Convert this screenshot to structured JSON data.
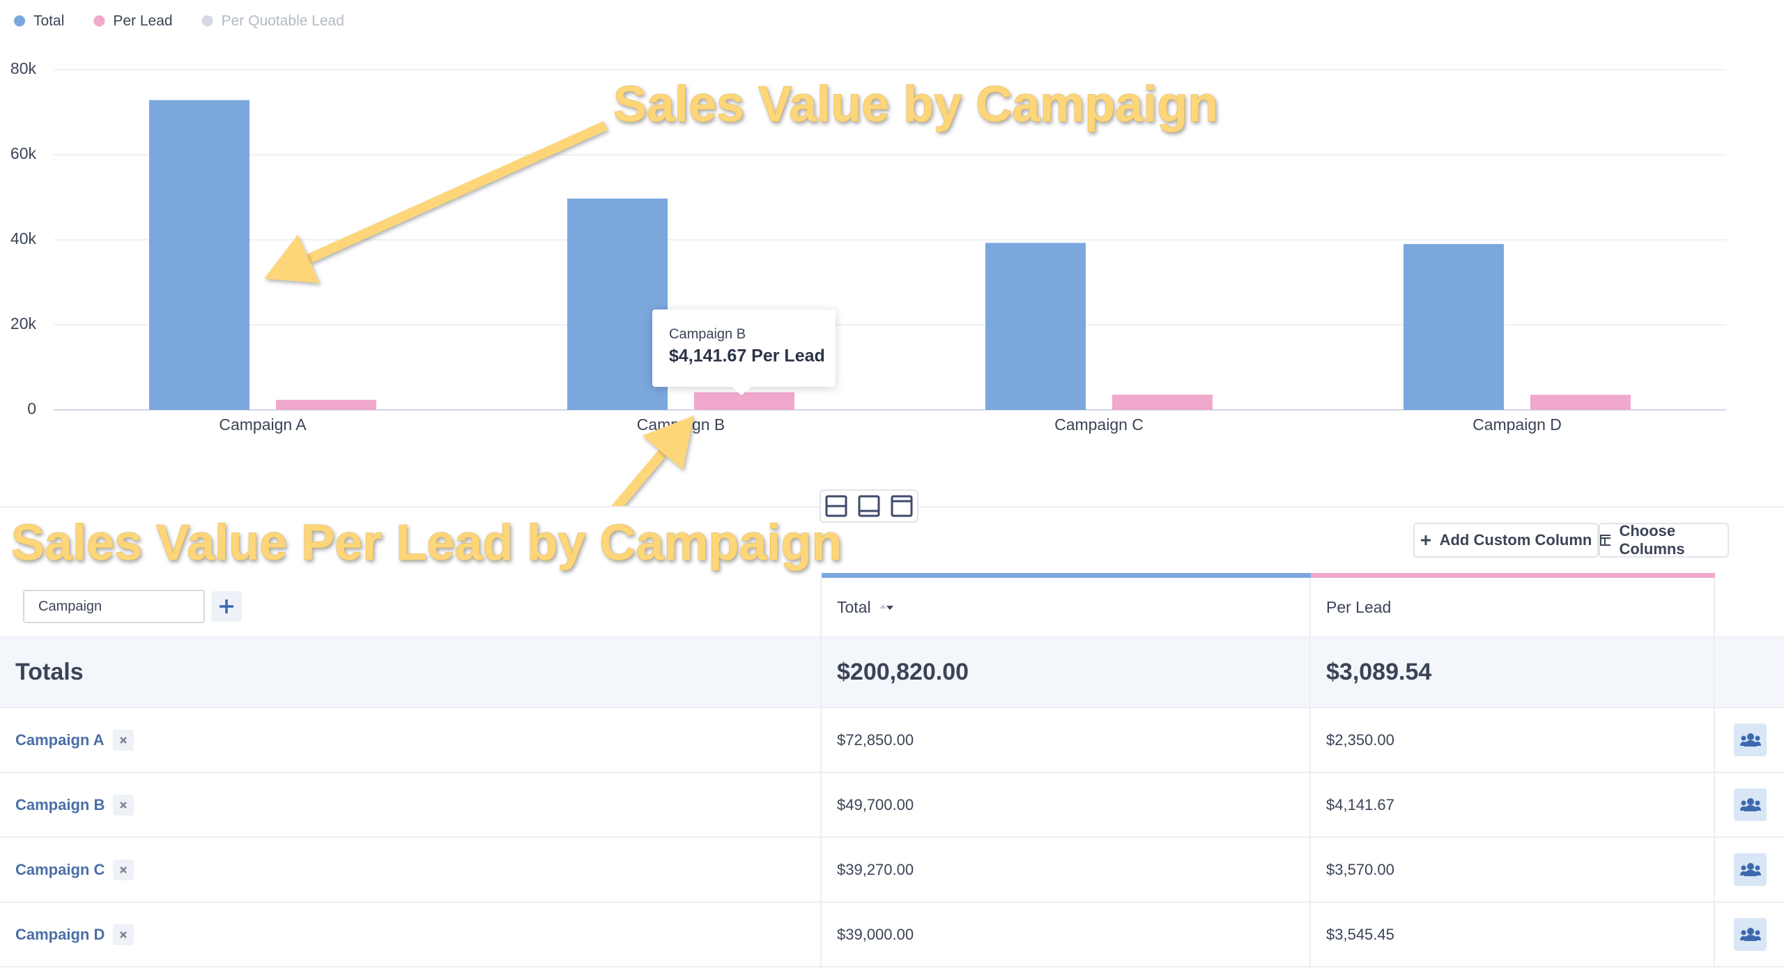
{
  "chart_data": {
    "type": "bar",
    "categories": [
      "Campaign A",
      "Campaign B",
      "Campaign C",
      "Campaign D"
    ],
    "series": [
      {
        "name": "Total",
        "color": "#7ba7dd",
        "values": [
          72850,
          49700,
          39270,
          39000
        ]
      },
      {
        "name": "Per Lead",
        "color": "#f0a8cc",
        "values": [
          2350,
          4141.67,
          3570,
          3545.45
        ]
      },
      {
        "name": "Per Quotable Lead",
        "color": "#d5d9e6",
        "values": [
          null,
          null,
          null,
          null
        ]
      }
    ],
    "ylim": [
      0,
      80000
    ],
    "yticks": [
      0,
      {
        "value": 20000,
        "label": "20k"
      },
      {
        "value": 40000,
        "label": "40k"
      },
      {
        "value": 60000,
        "label": "60k"
      },
      {
        "value": 80000,
        "label": "80k"
      }
    ],
    "grid": true
  },
  "tooltip": {
    "title": "Campaign B",
    "text": "$4,141.67 Per Lead"
  },
  "annotations": [
    "Sales Value by Campaign",
    "Sales Value Per Lead by Campaign"
  ],
  "toolbar": {
    "buttons": [
      "Add Custom Column",
      "Choose Columns"
    ]
  },
  "table": {
    "group_by": "Campaign",
    "columns": [
      "Total",
      "Per Lead"
    ],
    "totals": [
      "Totals",
      "$200,820.00",
      "$3,089.54"
    ],
    "rows": [
      [
        "Campaign A",
        "$72,850.00",
        "$2,350.00"
      ],
      [
        "Campaign B",
        "$49,700.00",
        "$4,141.67"
      ],
      [
        "Campaign C",
        "$39,270.00",
        "$3,570.00"
      ],
      [
        "Campaign D",
        "$39,000.00",
        "$3,545.45"
      ]
    ]
  }
}
